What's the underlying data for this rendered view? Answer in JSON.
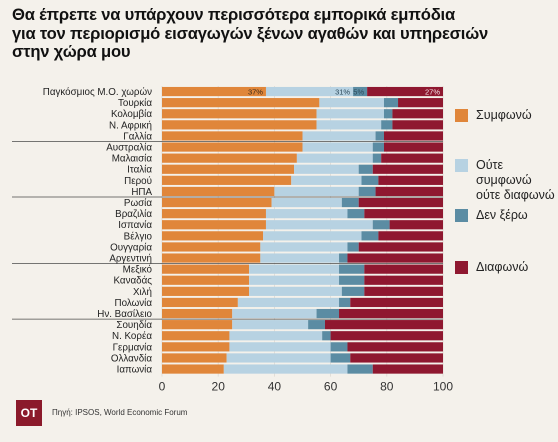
{
  "title_lines": [
    "Θα έπρεπε να υπάρχουν περισσότερα εμπορικά εμπόδια",
    "για τον περιορισμό εισαγωγών ξένων αγαθών και υπηρεσιών",
    "στην χώρα μου"
  ],
  "legend": [
    {
      "label": "Συμφωνώ",
      "color": "#e0863a"
    },
    {
      "label": "Ούτε συμφωνώ ούτε διαφωνώ",
      "color": "#b7d2e2"
    },
    {
      "label": "Δεν ξέρω",
      "color": "#5b8ca3"
    },
    {
      "label": "Διαφωνώ",
      "color": "#8f1830"
    }
  ],
  "footer": {
    "logo": "ΟΤ",
    "source": "Πηγή: IPSOS, World Economic Forum"
  },
  "chart_data": {
    "type": "bar",
    "orientation": "horizontal",
    "stacked": true,
    "xlim": [
      0,
      100
    ],
    "xticks": [
      0,
      20,
      40,
      60,
      80,
      100
    ],
    "categories": [
      "Παγκόσμιος Μ.Ο. χωρών",
      "Τουρκία",
      "Κολομβία",
      "Ν. Αφρική",
      "Γαλλία",
      "Αυστραλία",
      "Μαλαισία",
      "Ιταλία",
      "Περού",
      "ΗΠΑ",
      "Ρωσία",
      "Βραζιλία",
      "Ισπανία",
      "Βέλγιο",
      "Ουγγαρία",
      "Αργεντινή",
      "Μεξικό",
      "Καναδάς",
      "Χιλή",
      "Πολωνία",
      "Ην. Βασίλειο",
      "Σουηδία",
      "Ν. Κορέα",
      "Γερμανία",
      "Ολλανδία",
      "Ιαπωνία"
    ],
    "series": [
      {
        "name": "Συμφωνώ",
        "values": [
          37,
          56,
          55,
          55,
          50,
          50,
          48,
          47,
          46,
          40,
          39,
          37,
          37,
          36,
          35,
          35,
          31,
          31,
          31,
          27,
          25,
          25,
          24,
          24,
          23,
          22
        ]
      },
      {
        "name": "Ούτε συμφωνώ ούτε διαφωνώ",
        "values": [
          31,
          23,
          24,
          23,
          26,
          25,
          27,
          23,
          25,
          30,
          25,
          29,
          38,
          35,
          31,
          28,
          32,
          32,
          33,
          36,
          30,
          27,
          33,
          36,
          37,
          44
        ]
      },
      {
        "name": "Δεν ξέρω",
        "values": [
          5,
          5,
          3,
          4,
          3,
          4,
          3,
          5,
          6,
          6,
          6,
          6,
          6,
          6,
          4,
          3,
          9,
          9,
          8,
          4,
          8,
          6,
          3,
          6,
          7,
          9
        ]
      },
      {
        "name": "Διαφωνώ",
        "values": [
          27,
          16,
          18,
          18,
          21,
          21,
          22,
          25,
          23,
          24,
          30,
          28,
          19,
          23,
          30,
          34,
          28,
          28,
          28,
          33,
          37,
          42,
          40,
          34,
          33,
          25
        ]
      }
    ],
    "data_labels_first_row": [
      "37%",
      "31%",
      "5%",
      "27%"
    ]
  }
}
